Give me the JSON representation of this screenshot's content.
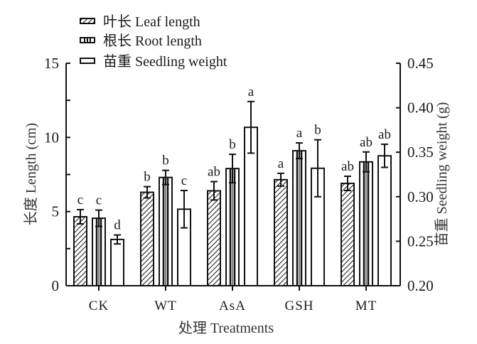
{
  "chart_data": {
    "type": "bar",
    "title": "",
    "categories": [
      "CK",
      "WT",
      "AsA",
      "GSH",
      "MT"
    ],
    "xlabel": "处理 Treatments",
    "ylabel": "长度 Length (cm)",
    "ylabel_right": "苗重 Seedling weight (g)",
    "ylim": [
      0,
      15
    ],
    "ylim_right": [
      0.2,
      0.45
    ],
    "yticks": [
      "0",
      "5",
      "10",
      "15"
    ],
    "yticks_right": [
      "0.20",
      "0.25",
      "0.30",
      "0.35",
      "0.40",
      "0.45"
    ],
    "legend_position": "top-left",
    "grid": false,
    "series": [
      {
        "name": "叶长 Leaf length",
        "axis": "left",
        "pattern": "hatch",
        "values": [
          4.65,
          6.3,
          6.4,
          7.15,
          6.9
        ],
        "errors": [
          0.48,
          0.38,
          0.62,
          0.43,
          0.48
        ],
        "letters": [
          "c",
          "b",
          "ab",
          "a",
          "ab"
        ]
      },
      {
        "name": "根长 Root length",
        "axis": "left",
        "pattern": "vertical-lines",
        "values": [
          4.55,
          7.3,
          7.9,
          9.1,
          8.35
        ],
        "errors": [
          0.55,
          0.48,
          0.96,
          0.53,
          0.67
        ],
        "letters": [
          "c",
          "b",
          "b",
          "a",
          "ab"
        ]
      },
      {
        "name": "苗重 Seedling weight",
        "axis": "right",
        "pattern": "empty",
        "values": [
          0.252,
          0.286,
          0.378,
          0.332,
          0.346
        ],
        "errors": [
          0.005,
          0.021,
          0.029,
          0.032,
          0.013
        ],
        "letters": [
          "d",
          "c",
          "a",
          "b",
          "ab"
        ]
      }
    ]
  }
}
